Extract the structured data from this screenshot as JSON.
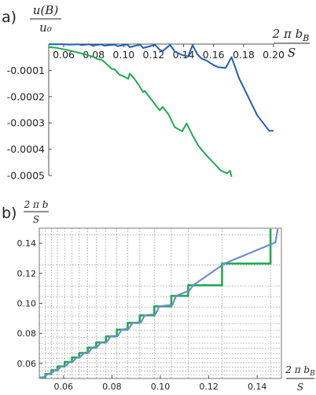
{
  "chart_data": [
    {
      "type": "line",
      "panel_label": "a)",
      "ylabel_num": "u(B)",
      "ylabel_den": "u₀",
      "xlabel_num": "2 π b",
      "xlabel_sub": "B",
      "xlabel_den": "S",
      "xlim": [
        0.05,
        0.2
      ],
      "ylim": [
        -0.0005,
        0.0
      ],
      "x_ticks": [
        "0.06",
        "0.08",
        "0.10",
        "0.12",
        "0.14",
        "0.16",
        "0.18",
        "0.20"
      ],
      "y_ticks": [
        "-0.0001",
        "-0.0002",
        "-0.0003",
        "-0.0004",
        "-0.0005"
      ],
      "series": [
        {
          "color": "#1f5fb4",
          "x": [
            0.05,
            0.06,
            0.064,
            0.07,
            0.072,
            0.077,
            0.079,
            0.085,
            0.087,
            0.094,
            0.096,
            0.1025,
            0.104,
            0.111,
            0.113,
            0.121,
            0.124,
            0.126,
            0.131,
            0.134,
            0.139,
            0.143,
            0.146,
            0.149,
            0.152,
            0.155,
            0.16,
            0.163,
            0.168,
            0.172,
            0.177,
            0.183,
            0.189,
            0.193,
            0.197,
            0.2
          ],
          "y": [
            -5e-07,
            -8e-07,
            -2e-06,
            -1e-06,
            -4e-06,
            -1e-06,
            -5e-06,
            -1.5e-06,
            -6e-06,
            -2e-06,
            -8e-06,
            -1.5e-06,
            -1.2e-05,
            -2e-06,
            -1.5e-05,
            -3e-06,
            -2.2e-05,
            -2.7e-05,
            -3e-06,
            -2.8e-05,
            -4.2e-05,
            -4.7e-05,
            -4e-06,
            -3.8e-05,
            -5.5e-05,
            -6.2e-05,
            -8e-05,
            -8.8e-05,
            -9.1e-05,
            -5e-05,
            -0.00013,
            -0.0002,
            -0.00027,
            -0.0003,
            -0.00033,
            -0.00033
          ]
        },
        {
          "color": "#1dab50",
          "x": [
            0.05,
            0.055,
            0.06,
            0.065,
            0.07,
            0.075,
            0.08,
            0.082,
            0.086,
            0.092,
            0.094,
            0.097,
            0.1,
            0.103,
            0.104,
            0.107,
            0.11,
            0.113,
            0.114,
            0.117,
            0.121,
            0.124,
            0.126,
            0.13,
            0.134,
            0.139,
            0.142,
            0.146,
            0.15,
            0.155,
            0.16,
            0.165,
            0.169,
            0.171,
            0.172
          ],
          "y": [
            -1.1e-05,
            -1.4e-05,
            -2e-05,
            -2.6e-05,
            -3.3e-05,
            -4e-05,
            -4.9e-05,
            -5.6e-05,
            -6.2e-05,
            -9.4e-05,
            -9.6e-05,
            -0.000116,
            -0.000123,
            -0.000132,
            -0.000112,
            -0.000131,
            -0.000155,
            -0.000183,
            -0.000178,
            -0.0002,
            -0.00023,
            -0.000252,
            -0.000239,
            -0.000268,
            -0.000316,
            -0.000332,
            -0.000302,
            -0.000348,
            -0.000388,
            -0.000422,
            -0.000452,
            -0.000482,
            -0.000492,
            -0.000482,
            -0.000505
          ]
        }
      ]
    },
    {
      "type": "line",
      "panel_label": "b)",
      "ylabel_num": "2 π b",
      "ylabel_den": "S",
      "xlabel_num": "2 π b",
      "xlabel_sub": "B",
      "xlabel_den": "S",
      "xlim": [
        0.05,
        0.15
      ],
      "ylim": [
        0.05,
        0.15
      ],
      "x_ticks": [
        "0.06",
        "0.08",
        "0.10",
        "0.12",
        "0.14"
      ],
      "y_ticks": [
        "0.06",
        "0.08",
        "0.10",
        "0.12",
        "0.14"
      ],
      "grid": "dotted",
      "grid_steps": [
        0.0525,
        0.055,
        0.0575,
        0.0605,
        0.0635,
        0.0665,
        0.07,
        0.0735,
        0.0775,
        0.082,
        0.0865,
        0.0915,
        0.0975,
        0.1045,
        0.1115,
        0.1255,
        0.1455
      ],
      "series": [
        {
          "color": "#1dab50",
          "x": [
            0.05,
            0.0525,
            0.0525,
            0.055,
            0.055,
            0.0575,
            0.0575,
            0.0605,
            0.0605,
            0.0635,
            0.0635,
            0.0665,
            0.0665,
            0.07,
            0.07,
            0.0735,
            0.0735,
            0.0775,
            0.0775,
            0.082,
            0.082,
            0.0865,
            0.0865,
            0.0915,
            0.0915,
            0.0975,
            0.0975,
            0.1045,
            0.1045,
            0.1115,
            0.1115,
            0.1255,
            0.1255,
            0.1455,
            0.1455
          ],
          "y": [
            0.0505,
            0.0505,
            0.053,
            0.053,
            0.0555,
            0.0555,
            0.058,
            0.058,
            0.061,
            0.061,
            0.064,
            0.064,
            0.067,
            0.067,
            0.0705,
            0.0705,
            0.074,
            0.074,
            0.078,
            0.078,
            0.0825,
            0.0825,
            0.087,
            0.087,
            0.092,
            0.092,
            0.098,
            0.098,
            0.105,
            0.105,
            0.112,
            0.112,
            0.1265,
            0.1265,
            0.1495
          ]
        },
        {
          "color": "#6b8fc8",
          "x": [
            0.05,
            0.052,
            0.0535,
            0.055,
            0.0565,
            0.0578,
            0.059,
            0.061,
            0.0625,
            0.064,
            0.0655,
            0.067,
            0.0685,
            0.0705,
            0.0718,
            0.074,
            0.0755,
            0.078,
            0.0795,
            0.0825,
            0.084,
            0.087,
            0.0885,
            0.092,
            0.0935,
            0.098,
            0.0995,
            0.105,
            0.1065,
            0.112,
            0.1135,
            0.1265,
            0.128,
            0.1475,
            0.1485
          ],
          "y": [
            0.0505,
            0.051,
            0.053,
            0.0535,
            0.0555,
            0.056,
            0.058,
            0.0585,
            0.061,
            0.0615,
            0.064,
            0.0645,
            0.067,
            0.0675,
            0.0705,
            0.0712,
            0.074,
            0.0745,
            0.078,
            0.0785,
            0.0825,
            0.0832,
            0.087,
            0.0875,
            0.092,
            0.0928,
            0.098,
            0.099,
            0.105,
            0.1085,
            0.112,
            0.1265,
            0.1275,
            0.1405,
            0.1495
          ]
        }
      ]
    }
  ]
}
